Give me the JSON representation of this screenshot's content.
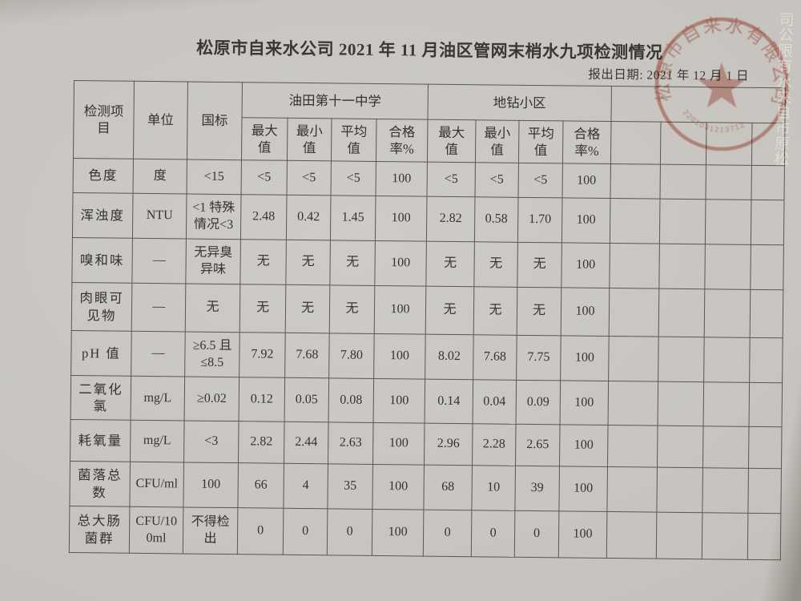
{
  "page": {
    "title": "松原市自来水公司 2021 年 11 月油区管网末梢水九项检测情况",
    "report_date": "报出日期: 2021 年 12 月 1 日",
    "paper_color": "#c6c3be",
    "line_color": "#5a5751",
    "text_color": "#35332f"
  },
  "stamp": {
    "company": "松原市自来水有限公司",
    "number": "2201031213712",
    "color": "#bf5746"
  },
  "watermark": {
    "text": "松原市自来水有限公司"
  },
  "table": {
    "header": {
      "item": "检测项\n目",
      "unit": "单位",
      "standard": "国标",
      "groups": [
        {
          "name": "油田第十一中学",
          "sub": [
            "最大\n值",
            "最小\n值",
            "平均\n值",
            "合格\n率%"
          ]
        },
        {
          "name": "地钻小区",
          "sub": [
            "最大\n值",
            "最小\n值",
            "平均\n值",
            "合格\n率%"
          ]
        }
      ],
      "empty_columns": 4
    },
    "rows": [
      {
        "item": "色度",
        "unit": "度",
        "standard": "<15",
        "g1": [
          "<5",
          "<5",
          "<5",
          "100"
        ],
        "g2": [
          "<5",
          "<5",
          "<5",
          "100"
        ]
      },
      {
        "item": "浑浊度",
        "unit": "NTU",
        "standard": "<1 特殊\n情况<3",
        "g1": [
          "2.48",
          "0.42",
          "1.45",
          "100"
        ],
        "g2": [
          "2.82",
          "0.58",
          "1.70",
          "100"
        ]
      },
      {
        "item": "嗅和味",
        "unit": "—",
        "standard": "无异臭\n异味",
        "g1": [
          "无",
          "无",
          "无",
          "100"
        ],
        "g2": [
          "无",
          "无",
          "无",
          "100"
        ]
      },
      {
        "item": "肉眼可\n见物",
        "unit": "—",
        "standard": "无",
        "g1": [
          "无",
          "无",
          "无",
          "100"
        ],
        "g2": [
          "无",
          "无",
          "无",
          "100"
        ]
      },
      {
        "item": "pH 值",
        "unit": "—",
        "standard": "≥6.5 且\n≤8.5",
        "g1": [
          "7.92",
          "7.68",
          "7.80",
          "100"
        ],
        "g2": [
          "8.02",
          "7.68",
          "7.75",
          "100"
        ]
      },
      {
        "item": "二氧化\n氯",
        "unit": "mg/L",
        "standard": "≥0.02",
        "g1": [
          "0.12",
          "0.05",
          "0.08",
          "100"
        ],
        "g2": [
          "0.14",
          "0.04",
          "0.09",
          "100"
        ]
      },
      {
        "item": "耗氧量",
        "unit": "mg/L",
        "standard": "<3",
        "g1": [
          "2.82",
          "2.44",
          "2.63",
          "100"
        ],
        "g2": [
          "2.96",
          "2.28",
          "2.65",
          "100"
        ]
      },
      {
        "item": "菌落总\n数",
        "unit": "CFU/ml",
        "standard": "100",
        "g1": [
          "66",
          "4",
          "35",
          "100"
        ],
        "g2": [
          "68",
          "10",
          "39",
          "100"
        ]
      },
      {
        "item": "总大肠\n菌群",
        "unit": "CFU/10\n0ml",
        "standard": "不得检\n出",
        "g1": [
          "0",
          "0",
          "0",
          "100"
        ],
        "g2": [
          "0",
          "0",
          "0",
          "100"
        ]
      }
    ]
  }
}
